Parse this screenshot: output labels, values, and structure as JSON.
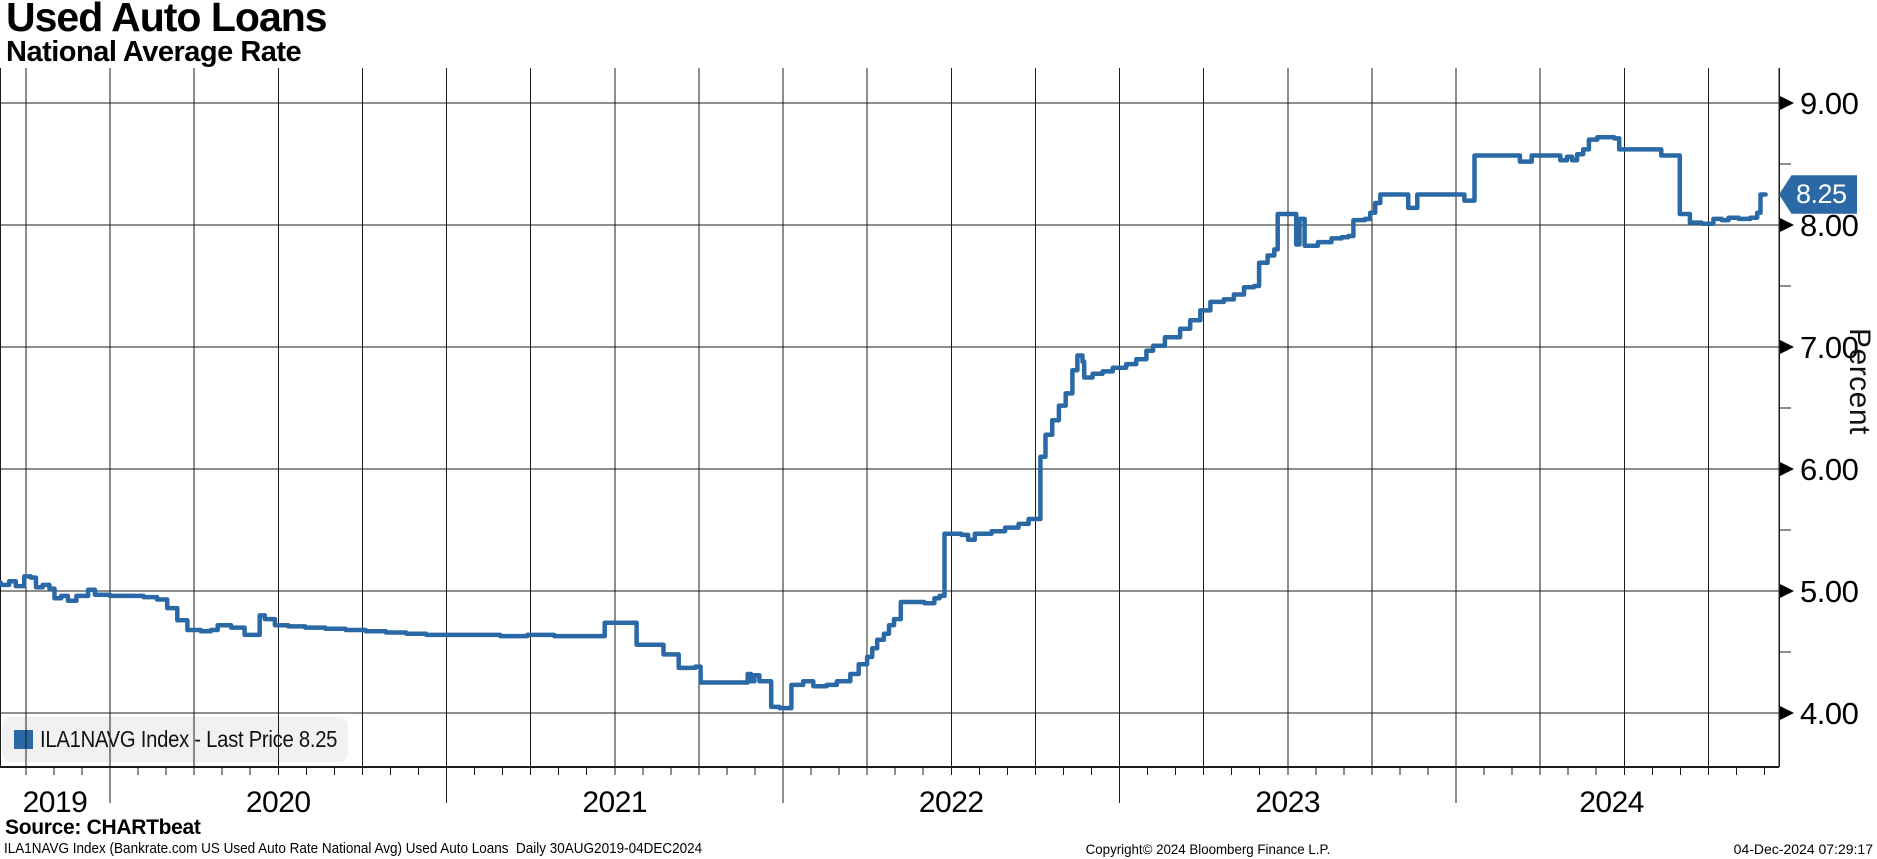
{
  "header": {
    "title": "Used Auto Loans",
    "subtitle": "National Average Rate"
  },
  "legend": {
    "label": "ILA1NAVG Index - Last Price 8.25",
    "marker_icon": "blue-square-icon"
  },
  "last_price_tag": {
    "value": "8.25"
  },
  "colors": {
    "series": "#2a69a5",
    "grid": "#1c1c1c",
    "axis": "#000000",
    "tag_bg": "#2a69a5",
    "tag_text": "#ffffff",
    "legend_bg": "#f1f1f1"
  },
  "footer": {
    "source": "Source: CHARTbeat",
    "description": "ILA1NAVG Index (Bankrate.com US Used Auto Rate National Avg) Used Auto Loans  Daily 30AUG2019-04DEC2024",
    "copyright": "Copyright© 2024 Bloomberg Finance L.P.",
    "timestamp": "04-Dec-2024 07:29:17"
  },
  "chart_data": {
    "type": "line",
    "title": "Used Auto Loans - National Average Rate",
    "ylabel": "Percent",
    "y_ticks": [
      {
        "value": 9,
        "label": "9.00"
      },
      {
        "value": 8,
        "label": "8.00"
      },
      {
        "value": 7,
        "label": "7.00"
      },
      {
        "value": 6,
        "label": "6.00"
      },
      {
        "value": 5,
        "label": "5.00"
      },
      {
        "value": 4,
        "label": "4.00"
      }
    ],
    "y_minor_ticks": [
      8.5,
      7.5,
      6.5,
      5.5,
      4.5
    ],
    "ylim": [
      3.55,
      9.3
    ],
    "x_range_years": [
      2019.663,
      2024.925
    ],
    "x_year_boundaries": [
      2019.663,
      2020,
      2021,
      2022,
      2023,
      2024,
      2024.925
    ],
    "x_year_labels": [
      "2019",
      "2020",
      "2021",
      "2022",
      "2023",
      "2024"
    ],
    "grid": "both",
    "legend_position": "bottom-left",
    "last_price": 8.25,
    "series": [
      {
        "name": "ILA1NAVG Index",
        "color": "#2a69a5",
        "points": [
          [
            2019.663,
            5.07
          ],
          [
            2019.675,
            5.05
          ],
          [
            2019.7,
            5.08
          ],
          [
            2019.72,
            5.04
          ],
          [
            2019.745,
            5.12
          ],
          [
            2019.765,
            5.11
          ],
          [
            2019.78,
            5.03
          ],
          [
            2019.8,
            5.05
          ],
          [
            2019.82,
            5.02
          ],
          [
            2019.835,
            4.94
          ],
          [
            2019.855,
            4.96
          ],
          [
            2019.875,
            4.92
          ],
          [
            2019.9,
            4.96
          ],
          [
            2019.935,
            5.01
          ],
          [
            2019.955,
            4.97
          ],
          [
            2020.0,
            4.96
          ],
          [
            2020.06,
            4.96
          ],
          [
            2020.1,
            4.95
          ],
          [
            2020.14,
            4.93
          ],
          [
            2020.17,
            4.86
          ],
          [
            2020.2,
            4.76
          ],
          [
            2020.23,
            4.68
          ],
          [
            2020.27,
            4.67
          ],
          [
            2020.3,
            4.68
          ],
          [
            2020.32,
            4.72
          ],
          [
            2020.36,
            4.7
          ],
          [
            2020.4,
            4.64
          ],
          [
            2020.435,
            4.64
          ],
          [
            2020.445,
            4.8
          ],
          [
            2020.46,
            4.77
          ],
          [
            2020.49,
            4.72
          ],
          [
            2020.53,
            4.71
          ],
          [
            2020.58,
            4.7
          ],
          [
            2020.64,
            4.69
          ],
          [
            2020.7,
            4.68
          ],
          [
            2020.76,
            4.67
          ],
          [
            2020.82,
            4.66
          ],
          [
            2020.88,
            4.65
          ],
          [
            2020.94,
            4.64
          ],
          [
            2021.0,
            4.64
          ],
          [
            2021.08,
            4.64
          ],
          [
            2021.16,
            4.63
          ],
          [
            2021.24,
            4.64
          ],
          [
            2021.32,
            4.63
          ],
          [
            2021.42,
            4.63
          ],
          [
            2021.47,
            4.74
          ],
          [
            2021.55,
            4.74
          ],
          [
            2021.565,
            4.56
          ],
          [
            2021.635,
            4.56
          ],
          [
            2021.645,
            4.48
          ],
          [
            2021.68,
            4.48
          ],
          [
            2021.69,
            4.37
          ],
          [
            2021.74,
            4.38
          ],
          [
            2021.755,
            4.25
          ],
          [
            2021.88,
            4.25
          ],
          [
            2021.895,
            4.32
          ],
          [
            2021.905,
            4.26
          ],
          [
            2021.915,
            4.31
          ],
          [
            2021.93,
            4.26
          ],
          [
            2021.96,
            4.26
          ],
          [
            2021.965,
            4.05
          ],
          [
            2021.99,
            4.04
          ],
          [
            2022.015,
            4.04
          ],
          [
            2022.025,
            4.23
          ],
          [
            2022.06,
            4.26
          ],
          [
            2022.09,
            4.22
          ],
          [
            2022.13,
            4.23
          ],
          [
            2022.16,
            4.26
          ],
          [
            2022.2,
            4.32
          ],
          [
            2022.225,
            4.4
          ],
          [
            2022.25,
            4.46
          ],
          [
            2022.265,
            4.53
          ],
          [
            2022.28,
            4.6
          ],
          [
            2022.3,
            4.65
          ],
          [
            2022.315,
            4.72
          ],
          [
            2022.33,
            4.77
          ],
          [
            2022.35,
            4.91
          ],
          [
            2022.42,
            4.9
          ],
          [
            2022.45,
            4.94
          ],
          [
            2022.465,
            4.96
          ],
          [
            2022.48,
            5.47
          ],
          [
            2022.53,
            5.46
          ],
          [
            2022.55,
            5.42
          ],
          [
            2022.57,
            5.47
          ],
          [
            2022.62,
            5.49
          ],
          [
            2022.66,
            5.52
          ],
          [
            2022.7,
            5.55
          ],
          [
            2022.73,
            5.59
          ],
          [
            2022.765,
            6.1
          ],
          [
            2022.78,
            6.28
          ],
          [
            2022.8,
            6.4
          ],
          [
            2022.82,
            6.52
          ],
          [
            2022.84,
            6.62
          ],
          [
            2022.86,
            6.81
          ],
          [
            2022.875,
            6.93
          ],
          [
            2022.89,
            6.88
          ],
          [
            2022.895,
            6.75
          ],
          [
            2022.92,
            6.78
          ],
          [
            2022.95,
            6.8
          ],
          [
            2022.98,
            6.83
          ],
          [
            2023.02,
            6.86
          ],
          [
            2023.05,
            6.9
          ],
          [
            2023.08,
            6.97
          ],
          [
            2023.1,
            7.01
          ],
          [
            2023.135,
            7.08
          ],
          [
            2023.18,
            7.15
          ],
          [
            2023.21,
            7.22
          ],
          [
            2023.24,
            7.3
          ],
          [
            2023.27,
            7.37
          ],
          [
            2023.31,
            7.39
          ],
          [
            2023.34,
            7.43
          ],
          [
            2023.37,
            7.49
          ],
          [
            2023.4,
            7.5
          ],
          [
            2023.415,
            7.69
          ],
          [
            2023.44,
            7.75
          ],
          [
            2023.46,
            7.8
          ],
          [
            2023.47,
            8.09
          ],
          [
            2023.52,
            8.09
          ],
          [
            2023.525,
            7.84
          ],
          [
            2023.535,
            8.05
          ],
          [
            2023.55,
            7.83
          ],
          [
            2023.59,
            7.86
          ],
          [
            2023.63,
            7.89
          ],
          [
            2023.66,
            7.9
          ],
          [
            2023.68,
            7.91
          ],
          [
            2023.695,
            8.04
          ],
          [
            2023.73,
            8.05
          ],
          [
            2023.745,
            8.1
          ],
          [
            2023.76,
            8.18
          ],
          [
            2023.775,
            8.25
          ],
          [
            2023.85,
            8.25
          ],
          [
            2023.858,
            8.14
          ],
          [
            2023.875,
            8.14
          ],
          [
            2023.885,
            8.25
          ],
          [
            2024.015,
            8.25
          ],
          [
            2024.025,
            8.2
          ],
          [
            2024.045,
            8.2
          ],
          [
            2024.055,
            8.57
          ],
          [
            2024.18,
            8.57
          ],
          [
            2024.19,
            8.52
          ],
          [
            2024.215,
            8.52
          ],
          [
            2024.225,
            8.57
          ],
          [
            2024.3,
            8.57
          ],
          [
            2024.31,
            8.53
          ],
          [
            2024.33,
            8.56
          ],
          [
            2024.345,
            8.53
          ],
          [
            2024.36,
            8.58
          ],
          [
            2024.378,
            8.62
          ],
          [
            2024.395,
            8.7
          ],
          [
            2024.42,
            8.72
          ],
          [
            2024.47,
            8.71
          ],
          [
            2024.485,
            8.62
          ],
          [
            2024.6,
            8.62
          ],
          [
            2024.61,
            8.57
          ],
          [
            2024.655,
            8.57
          ],
          [
            2024.665,
            8.09
          ],
          [
            2024.685,
            8.09
          ],
          [
            2024.695,
            8.02
          ],
          [
            2024.73,
            8.01
          ],
          [
            2024.765,
            8.05
          ],
          [
            2024.79,
            8.04
          ],
          [
            2024.81,
            8.06
          ],
          [
            2024.84,
            8.05
          ],
          [
            2024.875,
            8.06
          ],
          [
            2024.895,
            8.1
          ],
          [
            2024.905,
            8.25
          ],
          [
            2024.92,
            8.25
          ]
        ]
      }
    ]
  }
}
